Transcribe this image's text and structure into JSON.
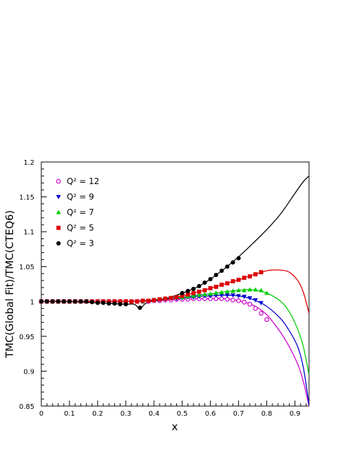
{
  "chart_data": {
    "type": "line",
    "xlabel": "x",
    "ylabel": "TMC(Global Fit)/TMC(CTEQ6)",
    "xlim": [
      0,
      0.95
    ],
    "ylim": [
      0.85,
      1.2
    ],
    "xticks": [
      "0",
      "0.1",
      "0.2",
      "0.3",
      "0.4",
      "0.5",
      "0.6",
      "0.7",
      "0.8",
      "0.9"
    ],
    "yticks": [
      "0.85",
      "0.9",
      "0.95",
      "1",
      "1.05",
      "1.1",
      "1.15",
      "1.2"
    ],
    "grid": false,
    "legend_position": "top-left",
    "series": [
      {
        "label": "Q² = 12",
        "color": "#cc00cc",
        "marker": "open-circle",
        "curve": [
          [
            0.0,
            1.0
          ],
          [
            0.1,
            1.0
          ],
          [
            0.2,
            1.0
          ],
          [
            0.3,
            1.0
          ],
          [
            0.4,
            1.001
          ],
          [
            0.5,
            1.003
          ],
          [
            0.55,
            1.004
          ],
          [
            0.6,
            1.004
          ],
          [
            0.65,
            1.004
          ],
          [
            0.7,
            1.001
          ],
          [
            0.75,
            0.995
          ],
          [
            0.8,
            0.981
          ],
          [
            0.85,
            0.955
          ],
          [
            0.88,
            0.935
          ],
          [
            0.91,
            0.91
          ],
          [
            0.93,
            0.885
          ],
          [
            0.95,
            0.85
          ]
        ],
        "points": [
          [
            0.0,
            1.0
          ],
          [
            0.02,
            1.0
          ],
          [
            0.04,
            1.0
          ],
          [
            0.06,
            1.0
          ],
          [
            0.08,
            1.0
          ],
          [
            0.1,
            1.0
          ],
          [
            0.12,
            1.0
          ],
          [
            0.14,
            1.0
          ],
          [
            0.16,
            1.0
          ],
          [
            0.18,
            1.0
          ],
          [
            0.2,
            1.0
          ],
          [
            0.22,
            1.0
          ],
          [
            0.24,
            1.0
          ],
          [
            0.26,
            1.0
          ],
          [
            0.28,
            1.0
          ],
          [
            0.3,
            1.0
          ],
          [
            0.32,
            1.0
          ],
          [
            0.34,
            1.0
          ],
          [
            0.36,
            1.0
          ],
          [
            0.38,
            1.0
          ],
          [
            0.4,
            1.001
          ],
          [
            0.42,
            1.001
          ],
          [
            0.44,
            1.002
          ],
          [
            0.46,
            1.002
          ],
          [
            0.48,
            1.003
          ],
          [
            0.5,
            1.003
          ],
          [
            0.52,
            1.003
          ],
          [
            0.54,
            1.004
          ],
          [
            0.56,
            1.004
          ],
          [
            0.58,
            1.004
          ],
          [
            0.6,
            1.004
          ],
          [
            0.62,
            1.004
          ],
          [
            0.64,
            1.004
          ],
          [
            0.66,
            1.003
          ],
          [
            0.68,
            1.002
          ],
          [
            0.7,
            1.001
          ],
          [
            0.72,
            0.999
          ],
          [
            0.74,
            0.996
          ],
          [
            0.76,
            0.99
          ],
          [
            0.78,
            0.983
          ],
          [
            0.8,
            0.974
          ]
        ]
      },
      {
        "label": "Q² = 9",
        "color": "#0000cc",
        "marker": "down-triangle",
        "curve": [
          [
            0.0,
            1.0
          ],
          [
            0.1,
            1.0
          ],
          [
            0.2,
            1.0
          ],
          [
            0.3,
            1.0
          ],
          [
            0.4,
            1.002
          ],
          [
            0.5,
            1.005
          ],
          [
            0.55,
            1.007
          ],
          [
            0.6,
            1.008
          ],
          [
            0.65,
            1.009
          ],
          [
            0.7,
            1.008
          ],
          [
            0.75,
            1.003
          ],
          [
            0.8,
            0.993
          ],
          [
            0.85,
            0.975
          ],
          [
            0.88,
            0.958
          ],
          [
            0.91,
            0.935
          ],
          [
            0.93,
            0.905
          ],
          [
            0.95,
            0.852
          ]
        ],
        "points": [
          [
            0.0,
            1.0
          ],
          [
            0.02,
            1.0
          ],
          [
            0.04,
            1.0
          ],
          [
            0.06,
            1.0
          ],
          [
            0.08,
            1.0
          ],
          [
            0.1,
            1.0
          ],
          [
            0.12,
            1.0
          ],
          [
            0.14,
            1.0
          ],
          [
            0.16,
            1.0
          ],
          [
            0.18,
            1.0
          ],
          [
            0.2,
            1.0
          ],
          [
            0.22,
            1.0
          ],
          [
            0.24,
            1.0
          ],
          [
            0.26,
            1.0
          ],
          [
            0.28,
            1.0
          ],
          [
            0.3,
            1.0
          ],
          [
            0.32,
            1.0
          ],
          [
            0.34,
            1.0
          ],
          [
            0.36,
            1.0
          ],
          [
            0.38,
            1.001
          ],
          [
            0.4,
            1.002
          ],
          [
            0.42,
            1.002
          ],
          [
            0.44,
            1.003
          ],
          [
            0.46,
            1.004
          ],
          [
            0.48,
            1.004
          ],
          [
            0.5,
            1.005
          ],
          [
            0.52,
            1.006
          ],
          [
            0.54,
            1.006
          ],
          [
            0.56,
            1.007
          ],
          [
            0.58,
            1.008
          ],
          [
            0.6,
            1.008
          ],
          [
            0.62,
            1.009
          ],
          [
            0.64,
            1.009
          ],
          [
            0.66,
            1.009
          ],
          [
            0.68,
            1.009
          ],
          [
            0.7,
            1.008
          ],
          [
            0.72,
            1.007
          ],
          [
            0.74,
            1.005
          ],
          [
            0.76,
            1.002
          ],
          [
            0.78,
            0.998
          ]
        ]
      },
      {
        "label": "Q² = 7",
        "color": "#00cc00",
        "marker": "up-triangle",
        "curve": [
          [
            0.0,
            1.0
          ],
          [
            0.1,
            1.0
          ],
          [
            0.2,
            1.0
          ],
          [
            0.3,
            1.0
          ],
          [
            0.4,
            1.002
          ],
          [
            0.5,
            1.006
          ],
          [
            0.55,
            1.009
          ],
          [
            0.6,
            1.011
          ],
          [
            0.65,
            1.014
          ],
          [
            0.7,
            1.016
          ],
          [
            0.75,
            1.017
          ],
          [
            0.8,
            1.012
          ],
          [
            0.85,
            1.0
          ],
          [
            0.88,
            0.985
          ],
          [
            0.91,
            0.96
          ],
          [
            0.93,
            0.935
          ],
          [
            0.95,
            0.895
          ]
        ],
        "points": [
          [
            0.0,
            1.0
          ],
          [
            0.02,
            1.0
          ],
          [
            0.04,
            1.0
          ],
          [
            0.06,
            1.0
          ],
          [
            0.08,
            1.0
          ],
          [
            0.1,
            1.0
          ],
          [
            0.12,
            1.0
          ],
          [
            0.14,
            1.0
          ],
          [
            0.16,
            1.0
          ],
          [
            0.18,
            1.0
          ],
          [
            0.2,
            1.0
          ],
          [
            0.22,
            1.0
          ],
          [
            0.24,
            1.0
          ],
          [
            0.26,
            1.0
          ],
          [
            0.28,
            1.0
          ],
          [
            0.3,
            1.0
          ],
          [
            0.32,
            1.0
          ],
          [
            0.34,
            1.0
          ],
          [
            0.36,
            1.0
          ],
          [
            0.38,
            1.001
          ],
          [
            0.4,
            1.002
          ],
          [
            0.42,
            1.003
          ],
          [
            0.44,
            1.004
          ],
          [
            0.46,
            1.005
          ],
          [
            0.48,
            1.006
          ],
          [
            0.5,
            1.006
          ],
          [
            0.52,
            1.007
          ],
          [
            0.54,
            1.008
          ],
          [
            0.56,
            1.009
          ],
          [
            0.58,
            1.01
          ],
          [
            0.6,
            1.011
          ],
          [
            0.62,
            1.012
          ],
          [
            0.64,
            1.013
          ],
          [
            0.66,
            1.014
          ],
          [
            0.68,
            1.015
          ],
          [
            0.7,
            1.016
          ],
          [
            0.72,
            1.016
          ],
          [
            0.74,
            1.017
          ],
          [
            0.76,
            1.017
          ],
          [
            0.78,
            1.016
          ],
          [
            0.8,
            1.012
          ]
        ]
      },
      {
        "label": "Q² = 5",
        "color": "#dd0000",
        "marker": "square",
        "curve": [
          [
            0.0,
            1.0
          ],
          [
            0.1,
            1.0
          ],
          [
            0.2,
            1.0
          ],
          [
            0.3,
            1.0
          ],
          [
            0.4,
            1.002
          ],
          [
            0.45,
            1.004
          ],
          [
            0.5,
            1.008
          ],
          [
            0.55,
            1.013
          ],
          [
            0.6,
            1.019
          ],
          [
            0.65,
            1.025
          ],
          [
            0.7,
            1.031
          ],
          [
            0.75,
            1.038
          ],
          [
            0.8,
            1.044
          ],
          [
            0.82,
            1.045
          ],
          [
            0.85,
            1.045
          ],
          [
            0.88,
            1.042
          ],
          [
            0.91,
            1.03
          ],
          [
            0.93,
            1.013
          ],
          [
            0.95,
            0.983
          ]
        ],
        "points": [
          [
            0.0,
            1.0
          ],
          [
            0.02,
            1.0
          ],
          [
            0.04,
            1.0
          ],
          [
            0.06,
            1.0
          ],
          [
            0.08,
            1.0
          ],
          [
            0.1,
            1.0
          ],
          [
            0.12,
            1.0
          ],
          [
            0.14,
            1.0
          ],
          [
            0.16,
            1.0
          ],
          [
            0.18,
            1.0
          ],
          [
            0.2,
            1.0
          ],
          [
            0.22,
            1.0
          ],
          [
            0.24,
            1.0
          ],
          [
            0.26,
            1.0
          ],
          [
            0.28,
            1.0
          ],
          [
            0.3,
            1.0
          ],
          [
            0.32,
            1.0
          ],
          [
            0.34,
            1.0
          ],
          [
            0.36,
            1.001
          ],
          [
            0.38,
            1.001
          ],
          [
            0.4,
            1.002
          ],
          [
            0.42,
            1.003
          ],
          [
            0.44,
            1.004
          ],
          [
            0.46,
            1.005
          ],
          [
            0.48,
            1.006
          ],
          [
            0.5,
            1.008
          ],
          [
            0.52,
            1.01
          ],
          [
            0.54,
            1.012
          ],
          [
            0.56,
            1.014
          ],
          [
            0.58,
            1.016
          ],
          [
            0.6,
            1.019
          ],
          [
            0.62,
            1.021
          ],
          [
            0.64,
            1.024
          ],
          [
            0.66,
            1.026
          ],
          [
            0.68,
            1.029
          ],
          [
            0.7,
            1.031
          ],
          [
            0.72,
            1.034
          ],
          [
            0.74,
            1.036
          ],
          [
            0.76,
            1.039
          ],
          [
            0.78,
            1.042
          ]
        ]
      },
      {
        "label": "Q² = 3",
        "color": "#000000",
        "marker": "filled-circle",
        "curve": [
          [
            0.0,
            1.0
          ],
          [
            0.1,
            1.0
          ],
          [
            0.2,
            0.998
          ],
          [
            0.25,
            0.997
          ],
          [
            0.3,
            0.996
          ],
          [
            0.33,
            0.996
          ],
          [
            0.35,
            0.99
          ],
          [
            0.37,
            0.997
          ],
          [
            0.4,
            1.001
          ],
          [
            0.45,
            1.005
          ],
          [
            0.5,
            1.012
          ],
          [
            0.55,
            1.02
          ],
          [
            0.6,
            1.032
          ],
          [
            0.65,
            1.047
          ],
          [
            0.7,
            1.064
          ],
          [
            0.75,
            1.083
          ],
          [
            0.8,
            1.103
          ],
          [
            0.85,
            1.126
          ],
          [
            0.9,
            1.155
          ],
          [
            0.93,
            1.172
          ],
          [
            0.95,
            1.18
          ]
        ],
        "points": [
          [
            0.0,
            1.0
          ],
          [
            0.02,
            1.0
          ],
          [
            0.04,
            1.0
          ],
          [
            0.06,
            1.0
          ],
          [
            0.08,
            1.0
          ],
          [
            0.1,
            1.0
          ],
          [
            0.12,
            1.0
          ],
          [
            0.14,
            1.0
          ],
          [
            0.16,
            1.0
          ],
          [
            0.18,
            0.999
          ],
          [
            0.2,
            0.998
          ],
          [
            0.22,
            0.998
          ],
          [
            0.24,
            0.997
          ],
          [
            0.26,
            0.997
          ],
          [
            0.28,
            0.996
          ],
          [
            0.3,
            0.996
          ],
          [
            0.35,
            0.991
          ],
          [
            0.5,
            1.012
          ],
          [
            0.52,
            1.015
          ],
          [
            0.54,
            1.018
          ],
          [
            0.56,
            1.022
          ],
          [
            0.58,
            1.027
          ],
          [
            0.6,
            1.032
          ],
          [
            0.62,
            1.038
          ],
          [
            0.64,
            1.044
          ],
          [
            0.66,
            1.05
          ],
          [
            0.68,
            1.056
          ],
          [
            0.7,
            1.062
          ]
        ]
      }
    ]
  }
}
